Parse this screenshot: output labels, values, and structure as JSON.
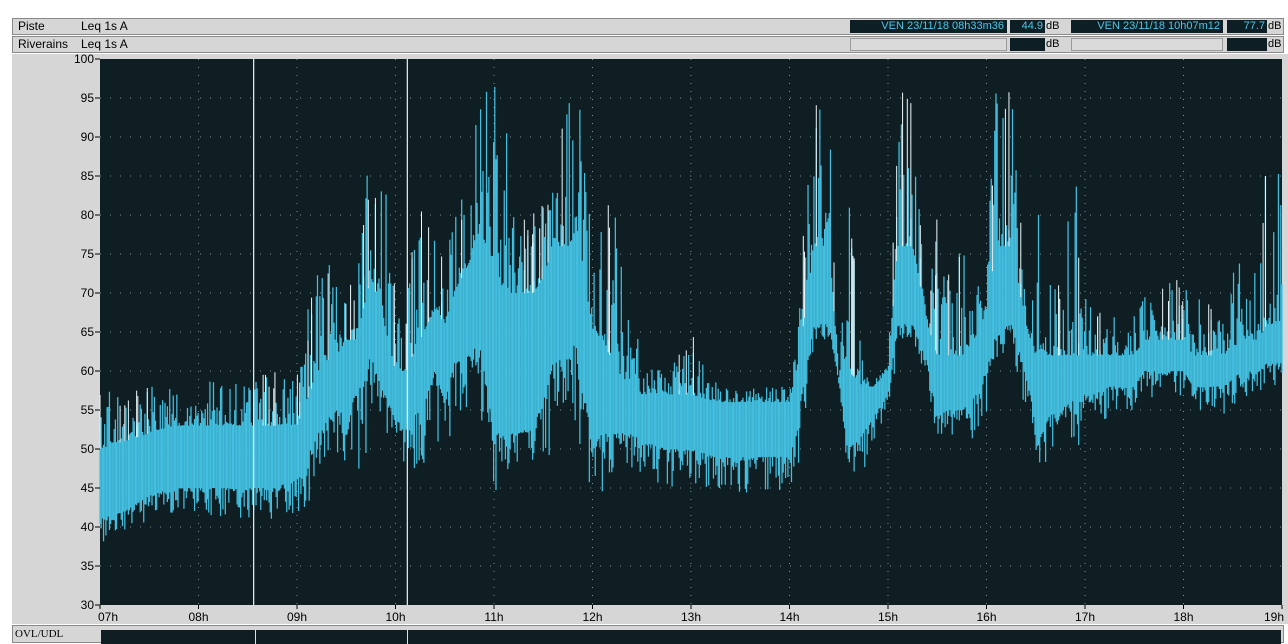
{
  "header": {
    "rows": [
      {
        "name": "Piste",
        "metric": "Leq 1s  A",
        "cursor1_time": "VEN 23/11/18 08h33m36",
        "cursor1_value": "44.9",
        "cursor2_time": "VEN 23/11/18 10h07m12",
        "cursor2_value": "77.7",
        "unit": "dB"
      },
      {
        "name": "Riverains",
        "metric": "Leq 1s  A",
        "cursor1_time": "",
        "cursor1_value": "",
        "cursor2_time": "",
        "cursor2_value": "",
        "unit": "dB"
      }
    ]
  },
  "footer": {
    "label": "OVL/UDL"
  },
  "colors": {
    "background": "#0e1e22",
    "series": "#43bfe0",
    "grid": "#9fb7bc",
    "cursor": "#e6f6fb",
    "spike": "#eef9fc"
  },
  "chart_data": {
    "type": "area",
    "xlabel": "",
    "ylabel": "",
    "ylim": [
      30,
      100
    ],
    "xlim": [
      7,
      19
    ],
    "y_ticks": [
      "100",
      "95",
      "90",
      "85",
      "80",
      "75",
      "70",
      "65",
      "60",
      "55",
      "50",
      "45",
      "40",
      "35",
      "30"
    ],
    "x_ticks": [
      "07h",
      "08h",
      "09h",
      "10h",
      "11h",
      "12h",
      "13h",
      "14h",
      "15h",
      "16h",
      "17h",
      "18h",
      "19h"
    ],
    "grid": true,
    "cursors_hours": [
      8.56,
      10.12
    ],
    "series": [
      {
        "x": [
          7.0,
          7.25,
          7.5,
          7.75,
          8.0,
          8.25,
          8.5,
          8.75,
          9.0,
          9.25,
          9.4,
          9.5,
          9.6,
          9.75,
          9.85,
          10.0,
          10.1,
          10.25,
          10.4,
          10.5,
          10.6,
          10.75,
          10.85,
          11.0,
          11.1,
          11.25,
          11.4,
          11.5,
          11.6,
          11.75,
          11.85,
          12.0,
          12.1,
          12.25,
          12.4,
          12.5,
          12.75,
          13.0,
          13.25,
          13.5,
          13.75,
          14.0,
          14.1,
          14.25,
          14.4,
          14.5,
          14.6,
          14.75,
          14.85,
          15.0,
          15.1,
          15.25,
          15.4,
          15.5,
          15.6,
          15.75,
          15.85,
          16.0,
          16.1,
          16.25,
          16.4,
          16.5,
          16.6,
          16.75,
          16.85,
          17.0,
          17.1,
          17.25,
          17.4,
          17.5,
          17.6,
          17.75,
          17.85,
          18.0,
          18.1,
          18.25,
          18.4,
          18.5,
          18.6,
          18.75,
          18.85,
          19.0
        ],
        "low": [
          38,
          39,
          40,
          41,
          41,
          41,
          41,
          41,
          41,
          44,
          46,
          47,
          46,
          50,
          52,
          49,
          47,
          47,
          51,
          49,
          54,
          55,
          55,
          44,
          46,
          46,
          46,
          47,
          50,
          51,
          52,
          42,
          44,
          46,
          47,
          47,
          45,
          45,
          44,
          44,
          44,
          44,
          46,
          63,
          64,
          57,
          46,
          47,
          50,
          53,
          63,
          64,
          58,
          50,
          51,
          51,
          51,
          54,
          60,
          62,
          55,
          48,
          48,
          49,
          49,
          51,
          51,
          54,
          54,
          54,
          56,
          57,
          57,
          56,
          55,
          55,
          54,
          55,
          56,
          57,
          58,
          58
        ],
        "high": [
          58,
          58,
          58,
          59,
          59,
          59,
          59,
          60,
          60,
          80,
          71,
          72,
          72,
          92,
          90,
          70,
          70,
          82,
          80,
          80,
          82,
          84,
          96,
          97,
          96,
          83,
          82,
          82,
          84,
          97,
          97,
          83,
          84,
          80,
          68,
          62,
          62,
          66,
          60,
          58,
          58,
          58,
          73,
          96,
          95,
          59,
          84,
          60,
          58,
          63,
          98,
          96,
          70,
          80,
          72,
          80,
          70,
          84,
          97,
          96,
          72,
          84,
          71,
          72,
          98,
          70,
          70,
          68,
          66,
          68,
          70,
          70,
          72,
          72,
          71,
          72,
          72,
          74,
          74,
          74,
          90,
          86
        ],
        "mid_low": [
          41,
          42,
          44,
          45,
          45,
          45,
          45,
          45,
          46,
          53,
          55,
          55,
          57,
          62,
          58,
          54,
          53,
          55,
          60,
          56,
          61,
          62,
          64,
          52,
          52,
          52,
          53,
          56,
          61,
          62,
          64,
          50,
          52,
          52,
          52,
          51,
          50,
          50,
          49,
          49,
          49,
          49,
          55,
          66,
          66,
          59,
          50,
          52,
          54,
          57,
          66,
          66,
          61,
          54,
          55,
          55,
          56,
          60,
          65,
          66,
          60,
          53,
          54,
          55,
          56,
          57,
          57,
          58,
          58,
          58,
          60,
          60,
          60,
          60,
          58,
          58,
          58,
          59,
          60,
          60,
          61,
          61
        ],
        "mid_high": [
          50,
          51,
          52,
          53,
          53,
          53,
          53,
          53,
          53,
          61,
          62,
          64,
          64,
          72,
          68,
          60,
          60,
          64,
          68,
          66,
          70,
          74,
          78,
          74,
          70,
          70,
          70,
          72,
          76,
          76,
          78,
          65,
          64,
          60,
          58,
          57,
          57,
          57,
          56,
          56,
          56,
          56,
          62,
          76,
          76,
          60,
          60,
          58,
          58,
          60,
          76,
          76,
          66,
          62,
          62,
          62,
          62,
          68,
          76,
          76,
          66,
          62,
          62,
          62,
          62,
          62,
          62,
          62,
          62,
          62,
          64,
          64,
          64,
          64,
          62,
          62,
          62,
          63,
          64,
          64,
          66,
          66
        ]
      }
    ]
  }
}
